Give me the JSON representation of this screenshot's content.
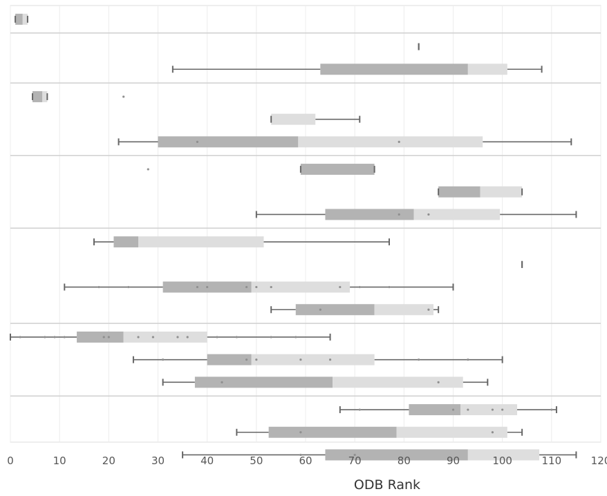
{
  "colors": {
    "box_dark": "#b3b3b3",
    "box_light": "#dedede",
    "whisker": "#666666",
    "grid": "#ececec",
    "separator": "#cfcfcf",
    "frame": "#dcdcdc",
    "point": "#8f8f8f"
  },
  "chart_data": {
    "type": "boxplot",
    "title": "",
    "xlabel": "ODB Rank",
    "ylabel": "",
    "xlim": [
      0,
      120
    ],
    "xticks": [
      0,
      10,
      20,
      30,
      40,
      50,
      60,
      70,
      80,
      90,
      100,
      110,
      120
    ],
    "grid": true,
    "legend": "none",
    "groups": [
      {
        "rows": [
          {
            "min": 1,
            "q1": 1,
            "median": 2.5,
            "q3": 3.5,
            "max": 3.5,
            "points": []
          }
        ]
      },
      {
        "rows": [
          {
            "min": 83,
            "q1": 83,
            "median": 83,
            "q3": 83,
            "max": 83,
            "points": []
          },
          {
            "min": 33,
            "q1": 63,
            "median": 93,
            "q3": 101,
            "max": 108,
            "points": []
          }
        ]
      },
      {
        "rows": [
          {
            "min": 4.5,
            "q1": 4.5,
            "median": 6.5,
            "q3": 7.5,
            "max": 7.5,
            "points": [
              23
            ]
          },
          {
            "min": 53,
            "q1": 53,
            "median": 53,
            "q3": 62,
            "max": 71,
            "points": []
          },
          {
            "min": 22,
            "q1": 30,
            "median": 58.5,
            "q3": 96,
            "max": 114,
            "points": [
              38,
              79
            ]
          }
        ]
      },
      {
        "rows": [
          {
            "min": 59,
            "q1": 59,
            "median": 74,
            "q3": 74,
            "max": 74,
            "points": [
              28
            ]
          },
          {
            "min": 87,
            "q1": 87,
            "median": 95.5,
            "q3": 104,
            "max": 104,
            "points": []
          },
          {
            "min": 50,
            "q1": 64,
            "median": 82,
            "q3": 99.5,
            "max": 115,
            "points": [
              79,
              85
            ]
          }
        ]
      },
      {
        "rows": [
          {
            "min": 17,
            "q1": 21,
            "median": 26,
            "q3": 51.5,
            "max": 77,
            "points": []
          },
          {
            "min": 104,
            "q1": 104,
            "median": 104,
            "q3": 104,
            "max": 104,
            "points": []
          },
          {
            "min": 11,
            "q1": 31,
            "median": 49,
            "q3": 69,
            "max": 90,
            "points": [
              18,
              24,
              38,
              40,
              48,
              50,
              53,
              67,
              71,
              77
            ]
          },
          {
            "min": 53,
            "q1": 58,
            "median": 74,
            "q3": 86,
            "max": 87,
            "points": [
              63,
              85
            ]
          }
        ]
      },
      {
        "rows": [
          {
            "min": 0,
            "q1": 13.5,
            "median": 23,
            "q3": 40,
            "max": 65,
            "points": [
              2,
              7,
              9,
              11,
              19,
              20,
              26,
              29,
              34,
              36,
              42,
              46,
              53,
              58
            ]
          },
          {
            "min": 25,
            "q1": 40,
            "median": 49,
            "q3": 74,
            "max": 100,
            "points": [
              31,
              48,
              50,
              59,
              65,
              83,
              93
            ]
          },
          {
            "min": 31,
            "q1": 37.5,
            "median": 65.5,
            "q3": 92,
            "max": 97,
            "points": [
              43,
              87
            ]
          }
        ]
      },
      {
        "rows": [
          {
            "min": 67,
            "q1": 81,
            "median": 91.5,
            "q3": 103,
            "max": 111,
            "points": [
              71,
              90,
              93,
              98,
              100,
              110
            ]
          },
          {
            "min": 46,
            "q1": 52.5,
            "median": 78.5,
            "q3": 101,
            "max": 104,
            "points": [
              59,
              98
            ]
          },
          {
            "min": 35,
            "q1": 64,
            "median": 93,
            "q3": 107.5,
            "max": 115,
            "points": [
              59,
              70
            ]
          }
        ]
      }
    ]
  }
}
